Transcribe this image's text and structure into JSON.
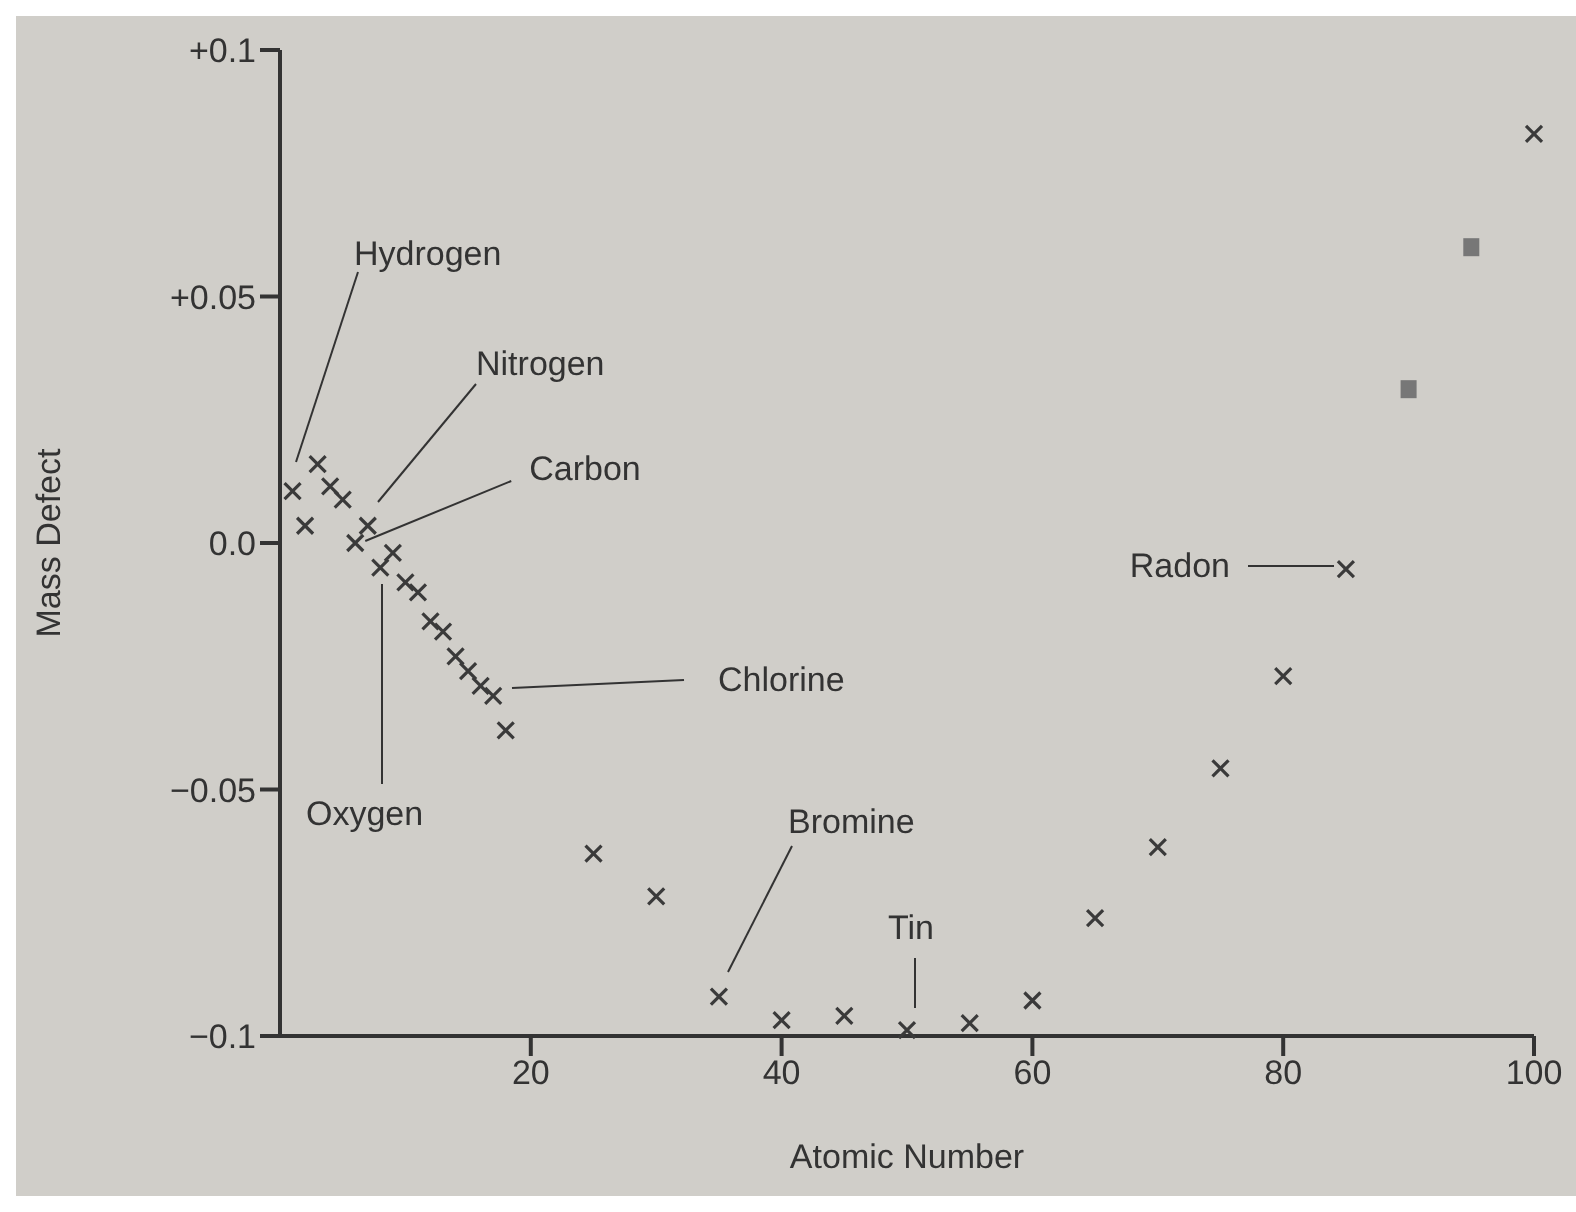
{
  "chart_data": {
    "type": "scatter",
    "xlabel": "Atomic Number",
    "ylabel": "Mass Defect",
    "xlim": [
      0,
      100
    ],
    "ylim": [
      -0.1,
      0.1
    ],
    "xticks": [
      20,
      40,
      60,
      80,
      100
    ],
    "yticks": [
      {
        "value": 0.1,
        "label": "+0.1"
      },
      {
        "value": 0.05,
        "label": "+0.05"
      },
      {
        "value": 0,
        "label": "0.0"
      },
      {
        "value": -0.05,
        "label": "−0.05"
      },
      {
        "value": -0.1,
        "label": "−0.1"
      }
    ],
    "grid": false,
    "legend": false,
    "series": [
      {
        "color": "#3a3a3a",
        "marker": "cross",
        "x": [
          1,
          2,
          3,
          4,
          5,
          6,
          7,
          8,
          9,
          10,
          11,
          12,
          13,
          14,
          15,
          16,
          17,
          18,
          25,
          30,
          35,
          40,
          45,
          50,
          55,
          60,
          65,
          70,
          75,
          80,
          85,
          100
        ],
        "values": [
          0.0105,
          0.0035,
          0.016,
          0.0115,
          0.0088,
          0.0,
          0.0035,
          -0.005,
          -0.002,
          -0.008,
          -0.01,
          -0.0159,
          -0.018,
          -0.023,
          -0.026,
          -0.029,
          -0.031,
          -0.038,
          -0.063,
          -0.0717,
          -0.092,
          -0.0968,
          -0.0959,
          -0.0988,
          -0.0974,
          -0.0928,
          -0.0761,
          -0.0617,
          -0.0457,
          -0.027,
          -0.0053,
          0.083
        ]
      },
      {
        "color": "#777777",
        "marker": "square",
        "x": [
          90,
          95
        ],
        "values": [
          0.0312,
          0.06
        ]
      }
    ],
    "annotations": [
      "Hydrogen",
      "Nitrogen",
      {
        "text": "Carbon",
        "x": 6,
        "y": 0.0
      },
      "Oxygen",
      "Chlorine",
      "Bromine",
      {
        "text": "Tin",
        "x": 50,
        "y": -0.0988
      },
      "Radon"
    ]
  }
}
